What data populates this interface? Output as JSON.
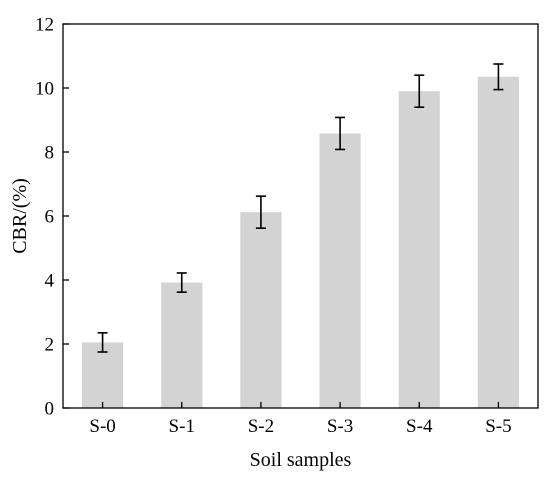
{
  "chart_data": {
    "type": "bar",
    "categories": [
      "S-0",
      "S-1",
      "S-2",
      "S-3",
      "S-4",
      "S-5"
    ],
    "values": [
      2.05,
      3.92,
      6.12,
      8.58,
      9.9,
      10.35
    ],
    "error": [
      0.3,
      0.3,
      0.5,
      0.5,
      0.5,
      0.4
    ],
    "xlabel": "Soil samples",
    "ylabel": "CBR/(%)",
    "ylim": [
      0,
      12
    ],
    "yticks": [
      0,
      2,
      4,
      6,
      8,
      10,
      12
    ],
    "grid": false,
    "legend": "none",
    "bar_color": "#d3d3d3",
    "error_color": "#000000"
  }
}
